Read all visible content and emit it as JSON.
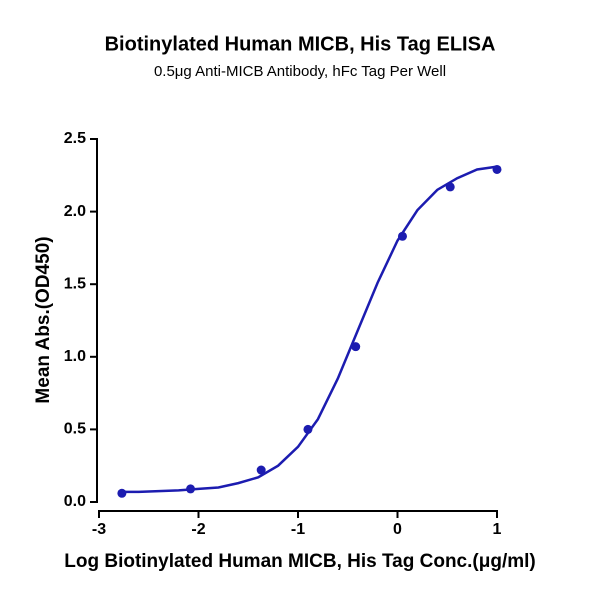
{
  "chart_data": {
    "type": "scatter",
    "title": "Biotinylated Human MICB, His Tag ELISA",
    "subtitle": "0.5μg Anti-MICB Antibody, hFc Tag Per Well",
    "x_label": "Log Biotinylated Human MICB, His Tag Conc.(μg/ml)",
    "y_label": "Mean Abs.(OD450)",
    "color": "#1c1cb0",
    "x": [
      -2.77,
      -2.08,
      -1.37,
      -0.9,
      -0.42,
      0.05,
      0.53,
      1.0
    ],
    "values": [
      0.06,
      0.09,
      0.22,
      0.5,
      1.07,
      1.83,
      2.17,
      2.29
    ],
    "fit_curve": {
      "x": [
        -2.8,
        -2.6,
        -2.4,
        -2.2,
        -2.0,
        -1.8,
        -1.6,
        -1.4,
        -1.2,
        -1.0,
        -0.8,
        -0.6,
        -0.4,
        -0.2,
        0,
        0.2,
        0.4,
        0.6,
        0.8,
        1.0
      ],
      "values": [
        0.07,
        0.07,
        0.075,
        0.08,
        0.09,
        0.1,
        0.13,
        0.17,
        0.25,
        0.38,
        0.57,
        0.85,
        1.18,
        1.51,
        1.8,
        2.01,
        2.15,
        2.23,
        2.29,
        2.31
      ]
    },
    "xlim": [
      -3,
      1
    ],
    "ylim": [
      0,
      2.5
    ],
    "xticks": [
      -3,
      -2,
      -1,
      0,
      1
    ],
    "yticks": [
      {
        "value": 0,
        "label": "0.0"
      },
      0.5,
      {
        "value": 1,
        "label": "1.0"
      },
      1.5,
      {
        "value": 2,
        "label": "2.0"
      },
      2.5
    ]
  }
}
